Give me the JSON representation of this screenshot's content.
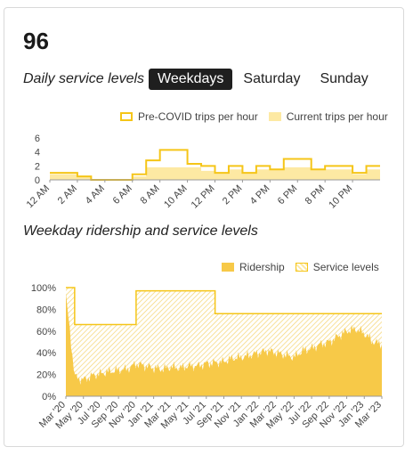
{
  "route_number": "96",
  "service_levels": {
    "label": "Daily service levels",
    "tabs": [
      {
        "label": "Weekdays",
        "active": true
      },
      {
        "label": "Saturday",
        "active": false
      },
      {
        "label": "Sunday",
        "active": false
      }
    ]
  },
  "colors": {
    "accent": "#f5c518",
    "light": "#fde9a3",
    "fill": "#f7c948"
  },
  "chart_data": [
    {
      "type": "step-area",
      "legend": [
        "Pre-COVID trips per hour",
        "Current trips per hour"
      ],
      "x_tick_labels": [
        "12 AM",
        "2 AM",
        "4 AM",
        "6 AM",
        "8 AM",
        "10 AM",
        "12 PM",
        "2 PM",
        "4 PM",
        "6 PM",
        "8 PM",
        "10 PM"
      ],
      "y_ticks": [
        0,
        2,
        4,
        6
      ],
      "ylim": [
        0,
        6
      ],
      "hours": [
        0,
        1,
        2,
        3,
        4,
        5,
        6,
        7,
        8,
        9,
        10,
        11,
        12,
        13,
        14,
        15,
        16,
        17,
        18,
        19,
        20,
        21,
        22,
        23
      ],
      "series": [
        {
          "name": "Pre-COVID trips per hour",
          "values": [
            1,
            1,
            0.5,
            0,
            0,
            0,
            0.8,
            2.8,
            4.3,
            4.3,
            2.3,
            2,
            1,
            2,
            1,
            2,
            1.5,
            3,
            3,
            1.5,
            2,
            2,
            1,
            2
          ]
        },
        {
          "name": "Current trips per hour",
          "values": [
            0.8,
            0.8,
            0.4,
            0,
            0,
            0,
            0.5,
            1.8,
            1.8,
            1.8,
            1.8,
            1.3,
            1,
            1.5,
            1,
            1.5,
            1.5,
            1.8,
            1.8,
            1.5,
            1.5,
            1.5,
            0.8,
            1.5
          ]
        }
      ]
    },
    {
      "type": "area",
      "title": "Weekday ridership and service levels",
      "legend": [
        "Ridership",
        "Service levels"
      ],
      "x_tick_labels": [
        "Mar '20",
        "May '20",
        "Jul '20",
        "Sep '20",
        "Nov '20",
        "Jan '21",
        "Mar '21",
        "May '21",
        "Jul '21",
        "Sep '21",
        "Nov '21",
        "Jan '22",
        "Mar '22",
        "May '22",
        "Jul '22",
        "Sep '22",
        "Nov '22",
        "Jan '23",
        "Mar '23"
      ],
      "y_tick_labels": [
        "0%",
        "20%",
        "40%",
        "60%",
        "80%",
        "100%"
      ],
      "ylim": [
        0,
        100
      ],
      "months": [
        0,
        1,
        2,
        3,
        4,
        5,
        6,
        7,
        8,
        9,
        10,
        11,
        12,
        13,
        14,
        15,
        16,
        17,
        18,
        19,
        20,
        21,
        22,
        23,
        24,
        25,
        26,
        27,
        28,
        29,
        30,
        31,
        32,
        33,
        34,
        35,
        36
      ],
      "series": [
        {
          "name": "Service levels",
          "values": [
            100,
            66,
            66,
            66,
            66,
            66,
            66,
            66,
            97,
            97,
            97,
            97,
            97,
            97,
            97,
            97,
            97,
            76,
            76,
            76,
            76,
            76,
            76,
            76,
            76,
            76,
            76,
            76,
            76,
            76,
            76,
            76,
            76,
            76,
            76,
            76,
            76
          ]
        },
        {
          "name": "Ridership",
          "values": [
            95,
            18,
            15,
            19,
            21,
            23,
            24,
            25,
            30,
            28,
            26,
            25,
            27,
            26,
            28,
            28,
            30,
            31,
            32,
            35,
            36,
            38,
            40,
            42,
            40,
            38,
            36,
            42,
            44,
            48,
            50,
            55,
            60,
            62,
            58,
            50,
            48
          ]
        }
      ]
    }
  ]
}
